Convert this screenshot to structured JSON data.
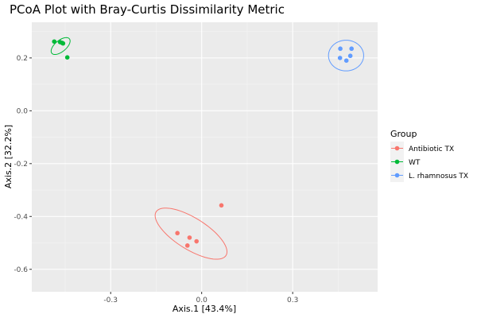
{
  "chart_data": {
    "type": "scatter",
    "title": "PCoA Plot with Bray-Curtis Dissimilarity Metric",
    "xlabel": "Axis.1   [43.4%]",
    "ylabel": "Axis.2   [32.2%]",
    "xlim": [
      -0.56,
      0.58
    ],
    "ylim": [
      -0.685,
      0.335
    ],
    "xticks": [
      -0.3,
      0.0,
      0.3
    ],
    "xtick_labels": [
      "-0.3",
      "0.0",
      "0.3"
    ],
    "yticks": [
      0.2,
      0.0,
      -0.2,
      -0.4,
      -0.6
    ],
    "ytick_labels": [
      "0.2",
      "0.0",
      "-0.2",
      "-0.4",
      "-0.6"
    ],
    "grid": true,
    "legend": {
      "title": "Group",
      "placement": "right"
    },
    "series": [
      {
        "name": "Antibiotic TX",
        "color": "#F8766D",
        "points": [
          {
            "x": 0.065,
            "y": -0.358
          },
          {
            "x": -0.08,
            "y": -0.463
          },
          {
            "x": -0.04,
            "y": -0.48
          },
          {
            "x": -0.017,
            "y": -0.494
          },
          {
            "x": -0.047,
            "y": -0.51
          }
        ],
        "ellipse": {
          "cx": -0.035,
          "cy": -0.465,
          "rx": 0.142,
          "ry": 0.057,
          "angle_deg": -37
        }
      },
      {
        "name": "WT",
        "color": "#00BA38",
        "points": [
          {
            "x": -0.486,
            "y": 0.262
          },
          {
            "x": -0.467,
            "y": 0.26
          },
          {
            "x": -0.457,
            "y": 0.255
          },
          {
            "x": -0.46,
            "y": 0.257
          },
          {
            "x": -0.443,
            "y": 0.202
          }
        ],
        "ellipse": {
          "cx": -0.465,
          "cy": 0.245,
          "rx": 0.04,
          "ry": 0.02,
          "angle_deg": 46
        }
      },
      {
        "name": "L. rhamnosus TX",
        "color": "#619CFF",
        "points": [
          {
            "x": 0.457,
            "y": 0.235
          },
          {
            "x": 0.494,
            "y": 0.235
          },
          {
            "x": 0.49,
            "y": 0.208
          },
          {
            "x": 0.456,
            "y": 0.2
          },
          {
            "x": 0.477,
            "y": 0.19
          }
        ],
        "ellipse": {
          "cx": 0.476,
          "cy": 0.209,
          "rx": 0.058,
          "ry": 0.058,
          "angle_deg": 0
        }
      }
    ]
  }
}
